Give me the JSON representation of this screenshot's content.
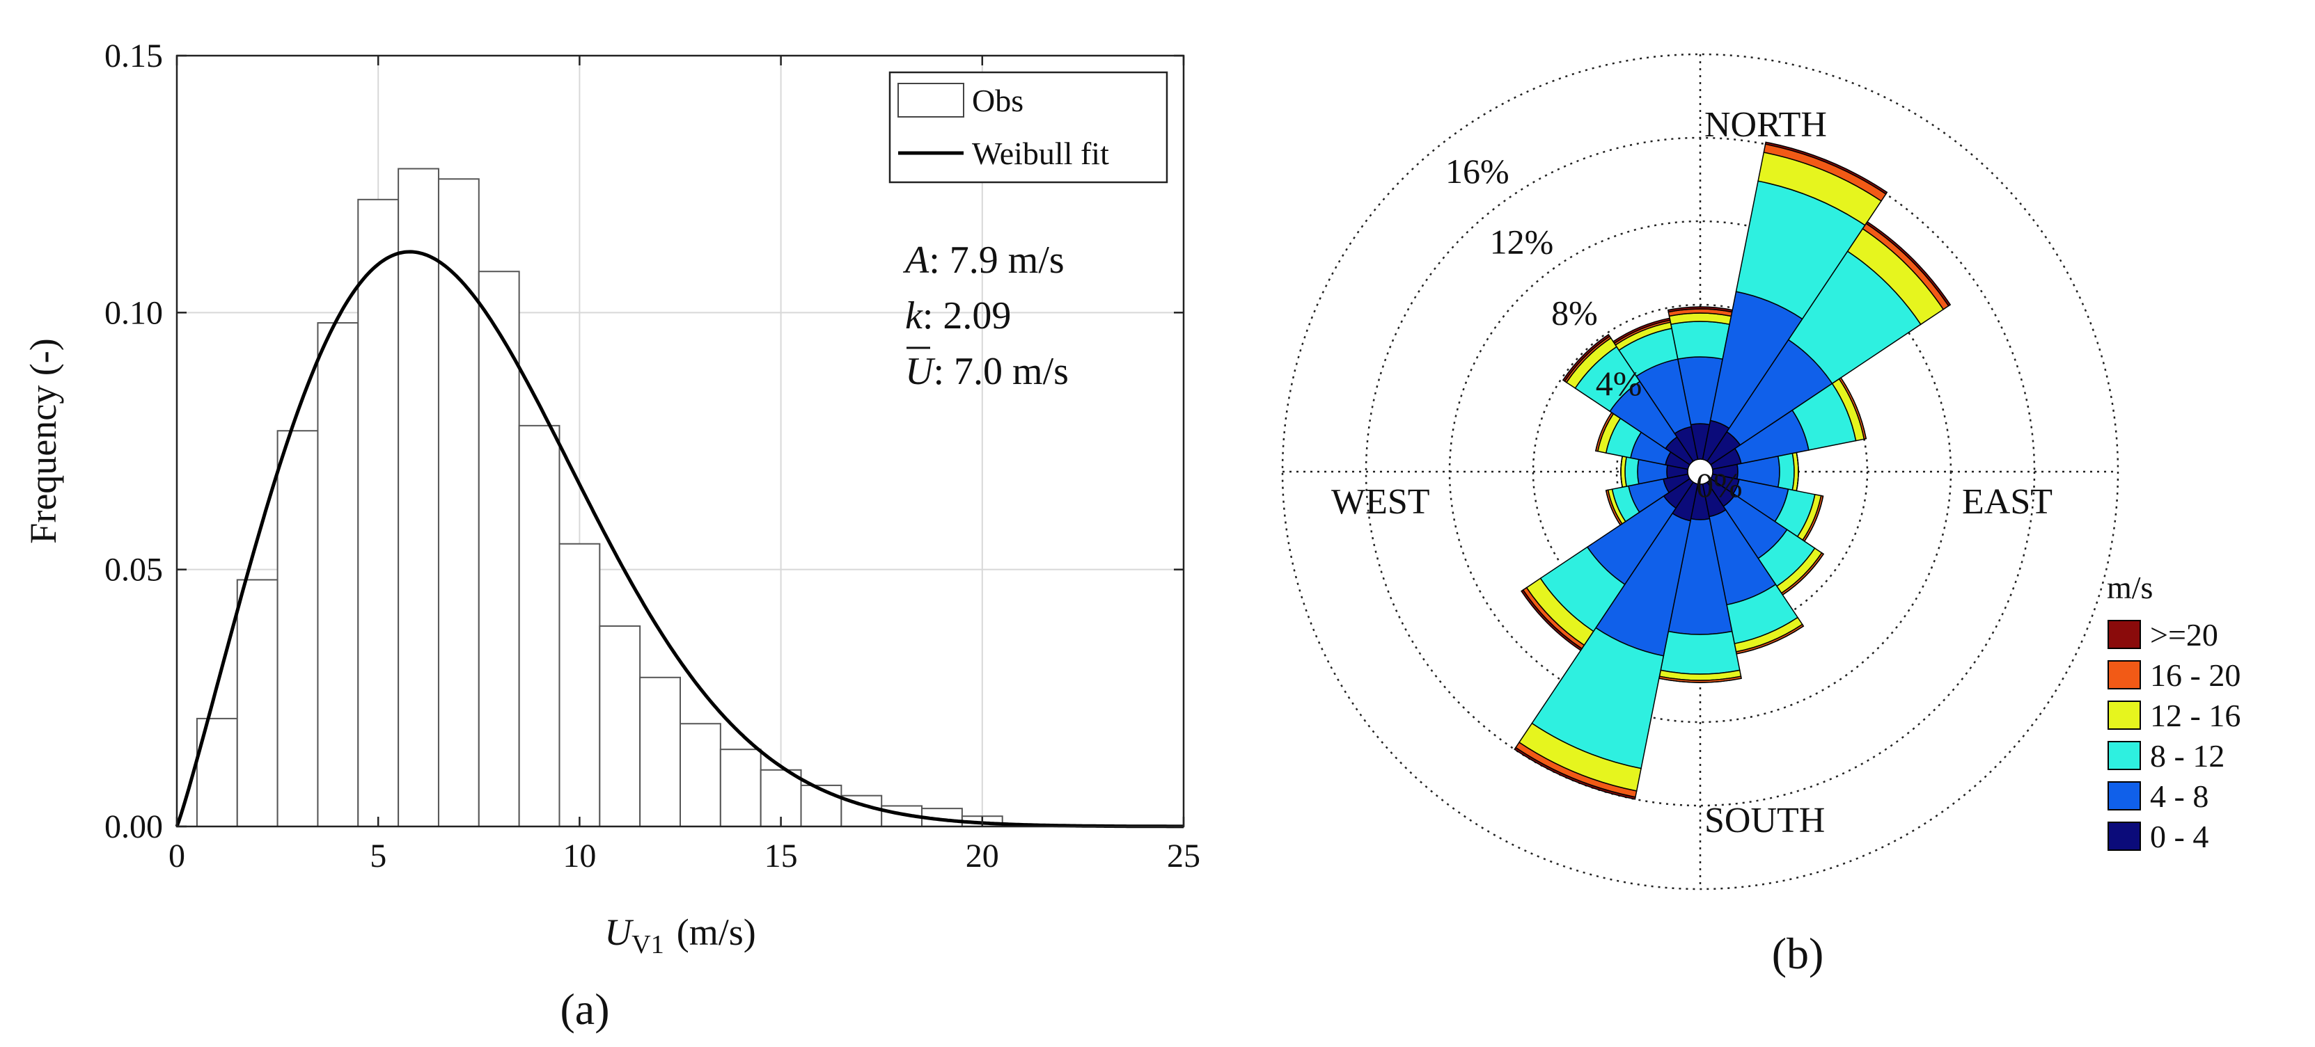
{
  "chart_data": [
    {
      "type": "bar",
      "panel_label": "(a)",
      "ylabel": "Frequency (-)",
      "xlabel": "U",
      "xlabel_sub": "V1",
      "xlabel_units": "(m/s)",
      "xlim": [
        0,
        25
      ],
      "ylim": [
        0,
        0.15
      ],
      "xticks": [
        0,
        5,
        10,
        15,
        20,
        25
      ],
      "xtick_labels": [
        "0",
        "5",
        "10",
        "15",
        "20",
        "25"
      ],
      "yticks": [
        0,
        0.05,
        0.1,
        0.15
      ],
      "ytick_labels": [
        "0.00",
        "0.05",
        "0.10",
        "0.15"
      ],
      "grid": true,
      "bin_width": 1,
      "bin_centers": [
        1,
        2,
        3,
        4,
        5,
        6,
        7,
        8,
        9,
        10,
        11,
        12,
        13,
        14,
        15,
        16,
        17,
        18,
        19,
        20
      ],
      "values": [
        0.021,
        0.048,
        0.077,
        0.098,
        0.122,
        0.128,
        0.126,
        0.108,
        0.078,
        0.055,
        0.039,
        0.029,
        0.02,
        0.015,
        0.011,
        0.008,
        0.006,
        0.004,
        0.0035,
        0.002
      ],
      "legend": {
        "position": "top-right",
        "obs": "Obs",
        "fit": "Weibull fit"
      },
      "weibull": {
        "A": 7.9,
        "k": 2.09,
        "mean": 7.0
      },
      "params": {
        "A_sym": "A",
        "A_text": ": 7.9 m/s",
        "k_sym": "k",
        "k_text": ": 2.09",
        "U_sym": "U",
        "U_text": ": 7.0 m/s"
      }
    },
    {
      "type": "wind-rose",
      "panel_label": "(b)",
      "directions": [
        "N",
        "NNE",
        "NE",
        "ENE",
        "E",
        "ESE",
        "SE",
        "SSE",
        "S",
        "SSW",
        "SW",
        "WSW",
        "W",
        "WNW",
        "NW",
        "NNW"
      ],
      "direction_angles": [
        0,
        22.5,
        45,
        67.5,
        90,
        112.5,
        135,
        157.5,
        180,
        202.5,
        225,
        247.5,
        270,
        292.5,
        315,
        337.5
      ],
      "bins": [
        "0 - 4",
        "4 - 8",
        "8 - 12",
        "12 - 16",
        "16 - 20",
        ">=20"
      ],
      "bin_colors": [
        "#0b0b7a",
        "#1060ea",
        "#2ef0e0",
        "#e6f51e",
        "#f25a16",
        "#8a0b0b"
      ],
      "cumulative_percent": [
        [
          2.3,
          5.5,
          7.2,
          7.6,
          7.8,
          7.9
        ],
        [
          2.5,
          8.8,
          14.2,
          15.6,
          16.0,
          16.1
        ],
        [
          2.3,
          7.6,
          12.7,
          14.0,
          14.3,
          14.4
        ],
        [
          2.0,
          5.3,
          7.6,
          8.0,
          8.1,
          8.1
        ],
        [
          1.8,
          3.8,
          4.5,
          4.7,
          4.7,
          4.7
        ],
        [
          1.9,
          4.3,
          5.6,
          5.9,
          6.0,
          6.0
        ],
        [
          2.0,
          5.0,
          6.6,
          7.0,
          7.1,
          7.1
        ],
        [
          2.2,
          6.5,
          8.4,
          8.8,
          8.9,
          8.9
        ],
        [
          2.3,
          7.8,
          9.7,
          10.0,
          10.1,
          10.1
        ],
        [
          2.4,
          9.0,
          14.5,
          15.6,
          15.9,
          16.0
        ],
        [
          2.1,
          6.5,
          9.2,
          10.0,
          10.2,
          10.3
        ],
        [
          1.8,
          3.5,
          4.3,
          4.5,
          4.6,
          4.6
        ],
        [
          1.6,
          3.0,
          3.6,
          3.8,
          3.8,
          3.8
        ],
        [
          1.7,
          3.4,
          4.6,
          5.0,
          5.1,
          5.1
        ],
        [
          2.0,
          5.2,
          7.2,
          7.7,
          7.8,
          7.9
        ],
        [
          2.2,
          5.5,
          7.0,
          7.3,
          7.4,
          7.5
        ]
      ],
      "rings": [
        0,
        4,
        8,
        12,
        16,
        20
      ],
      "ring_labels": [
        "0%",
        "4%",
        "8%",
        "12%",
        "16%"
      ],
      "compass": {
        "north": "NORTH",
        "south": "SOUTH",
        "east": "EAST",
        "west": "WEST"
      },
      "legend_title": "m/s",
      "legend_labels": [
        ">=20",
        "16 - 20",
        "12 - 16",
        "8 - 12",
        "4 - 8",
        "0 - 4"
      ],
      "legend_colors": [
        "#8a0b0b",
        "#f25a16",
        "#e6f51e",
        "#2ef0e0",
        "#1060ea",
        "#0b0b7a"
      ]
    }
  ]
}
